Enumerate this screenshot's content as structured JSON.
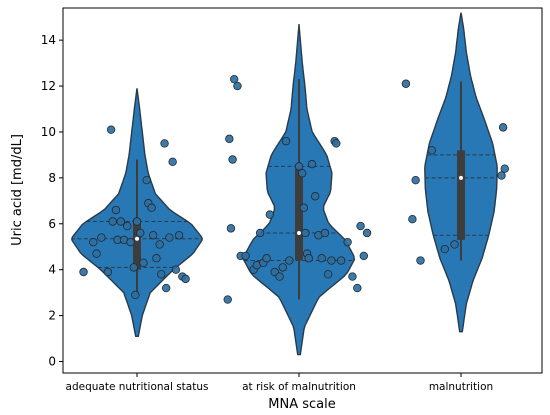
{
  "chart_data": {
    "type": "violin",
    "xlabel": "MNA scale",
    "ylabel": "Uric acid [md/dL]",
    "ylim": [
      -0.5,
      15.4
    ],
    "yticks": [
      0,
      2,
      4,
      6,
      8,
      10,
      12,
      14
    ],
    "categories": [
      "adequate nutritional status",
      "at risk of malnutrition",
      "malnutrition"
    ],
    "colors": {
      "violin": "#2878b5",
      "outline": "#2a3a4a",
      "box": "#3d3d3d",
      "median": "#ffffff",
      "point": "#2f6f9f"
    },
    "groups": [
      {
        "category": "adequate nutritional status",
        "violin_min": 1.1,
        "violin_max": 11.9,
        "density": [
          [
            1.1,
            0.02
          ],
          [
            2.0,
            0.08
          ],
          [
            3.0,
            0.2
          ],
          [
            4.0,
            0.55
          ],
          [
            4.7,
            0.85
          ],
          [
            5.35,
            1.0
          ],
          [
            6.0,
            0.82
          ],
          [
            6.6,
            0.5
          ],
          [
            7.3,
            0.28
          ],
          [
            8.2,
            0.17
          ],
          [
            9.0,
            0.12
          ],
          [
            10.0,
            0.08
          ],
          [
            11.0,
            0.04
          ],
          [
            11.9,
            0.0
          ]
        ],
        "box": {
          "q1": 4.0,
          "median": 5.35,
          "q3": 6.2,
          "whisker_low": 2.9,
          "whisker_high": 8.8
        },
        "quartile_lines": [
          4.1,
          5.35,
          6.1
        ],
        "points": [
          [
            -0.33,
            3.9
          ],
          [
            -0.27,
            5.2
          ],
          [
            -0.25,
            4.7
          ],
          [
            -0.22,
            5.4
          ],
          [
            -0.18,
            3.9
          ],
          [
            -0.15,
            6.1
          ],
          [
            -0.13,
            6.6
          ],
          [
            -0.12,
            5.3
          ],
          [
            -0.1,
            6.1
          ],
          [
            -0.08,
            5.3
          ],
          [
            -0.06,
            5.9
          ],
          [
            -0.04,
            5.2
          ],
          [
            -0.02,
            4.1
          ],
          [
            -0.01,
            2.9
          ],
          [
            0.0,
            6.1
          ],
          [
            0.02,
            5.6
          ],
          [
            0.04,
            4.3
          ],
          [
            0.06,
            7.9
          ],
          [
            0.07,
            6.9
          ],
          [
            0.09,
            6.7
          ],
          [
            0.1,
            5.5
          ],
          [
            0.12,
            4.5
          ],
          [
            0.14,
            5.1
          ],
          [
            0.15,
            3.8
          ],
          [
            0.17,
            9.5
          ],
          [
            0.18,
            3.2
          ],
          [
            0.2,
            5.4
          ],
          [
            0.22,
            8.7
          ],
          [
            0.24,
            4.0
          ],
          [
            0.26,
            5.5
          ],
          [
            0.28,
            3.7
          ],
          [
            0.3,
            3.6
          ],
          [
            -0.16,
            10.1
          ]
        ]
      },
      {
        "category": "at risk of malnutrition",
        "violin_min": 0.3,
        "violin_max": 14.7,
        "density": [
          [
            0.3,
            0.02
          ],
          [
            1.5,
            0.08
          ],
          [
            2.8,
            0.3
          ],
          [
            3.8,
            0.72
          ],
          [
            4.5,
            0.85
          ],
          [
            5.3,
            0.7
          ],
          [
            6.0,
            0.45
          ],
          [
            6.7,
            0.36
          ],
          [
            7.4,
            0.48
          ],
          [
            8.2,
            0.5
          ],
          [
            9.0,
            0.42
          ],
          [
            10.0,
            0.2
          ],
          [
            11.0,
            0.12
          ],
          [
            12.0,
            0.09
          ],
          [
            13.0,
            0.05
          ],
          [
            14.0,
            0.02
          ],
          [
            14.7,
            0.0
          ]
        ],
        "box": {
          "q1": 4.4,
          "median": 5.6,
          "q3": 8.4,
          "whisker_low": 2.7,
          "whisker_high": 12.3
        },
        "quartile_lines": [
          4.4,
          5.6,
          8.5
        ],
        "points": [
          [
            -0.44,
            2.7
          ],
          [
            -0.42,
            5.8
          ],
          [
            -0.41,
            8.8
          ],
          [
            -0.43,
            9.7
          ],
          [
            -0.4,
            12.3
          ],
          [
            -0.38,
            12.0
          ],
          [
            -0.36,
            4.6
          ],
          [
            -0.33,
            4.6
          ],
          [
            -0.28,
            4.0
          ],
          [
            -0.26,
            4.2
          ],
          [
            -0.24,
            5.6
          ],
          [
            -0.22,
            4.3
          ],
          [
            -0.2,
            4.5
          ],
          [
            -0.18,
            6.4
          ],
          [
            -0.15,
            3.9
          ],
          [
            -0.12,
            3.7
          ],
          [
            -0.1,
            4.1
          ],
          [
            -0.08,
            9.6
          ],
          [
            -0.06,
            4.4
          ],
          [
            0.0,
            8.5
          ],
          [
            0.02,
            8.2
          ],
          [
            0.03,
            6.7
          ],
          [
            0.04,
            5.6
          ],
          [
            0.05,
            4.7
          ],
          [
            0.06,
            4.5
          ],
          [
            0.08,
            8.6
          ],
          [
            0.1,
            7.2
          ],
          [
            0.12,
            5.5
          ],
          [
            0.14,
            4.5
          ],
          [
            0.16,
            5.6
          ],
          [
            0.18,
            3.8
          ],
          [
            0.2,
            4.4
          ],
          [
            0.22,
            9.6
          ],
          [
            0.23,
            9.5
          ],
          [
            0.26,
            4.4
          ],
          [
            0.3,
            5.2
          ],
          [
            0.33,
            3.7
          ],
          [
            0.36,
            3.2
          ],
          [
            0.38,
            5.9
          ],
          [
            0.4,
            4.6
          ],
          [
            0.42,
            5.6
          ]
        ]
      },
      {
        "category": "malnutrition",
        "violin_min": 1.3,
        "violin_max": 15.2,
        "density": [
          [
            1.3,
            0.02
          ],
          [
            2.5,
            0.08
          ],
          [
            3.5,
            0.18
          ],
          [
            4.5,
            0.32
          ],
          [
            5.5,
            0.42
          ],
          [
            6.5,
            0.5
          ],
          [
            7.5,
            0.54
          ],
          [
            8.5,
            0.55
          ],
          [
            9.5,
            0.48
          ],
          [
            10.5,
            0.36
          ],
          [
            11.5,
            0.23
          ],
          [
            12.5,
            0.14
          ],
          [
            13.5,
            0.08
          ],
          [
            14.5,
            0.04
          ],
          [
            15.2,
            0.0
          ]
        ],
        "box": {
          "q1": 5.3,
          "median": 8.0,
          "q3": 9.2,
          "whisker_low": 4.4,
          "whisker_high": 12.2
        },
        "quartile_lines": [
          5.5,
          8.0,
          9.0
        ],
        "points": [
          [
            -0.34,
            12.1
          ],
          [
            -0.3,
            6.2
          ],
          [
            -0.28,
            7.9
          ],
          [
            -0.25,
            4.4
          ],
          [
            -0.18,
            9.2
          ],
          [
            -0.1,
            4.9
          ],
          [
            -0.04,
            5.1
          ],
          [
            0.25,
            8.1
          ],
          [
            0.27,
            8.4
          ],
          [
            0.26,
            10.2
          ]
        ]
      }
    ]
  }
}
